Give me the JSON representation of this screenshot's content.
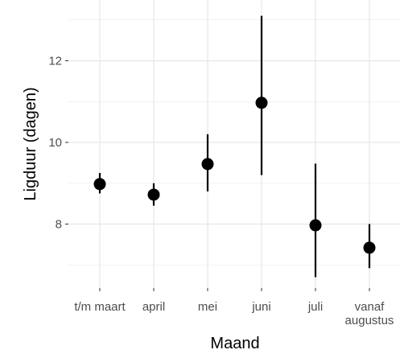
{
  "chart_data": {
    "type": "scatter",
    "xlabel": "Maand",
    "ylabel": "Ligduur (dagen)",
    "categories": [
      "t/m maart",
      "april",
      "mei",
      "juni",
      "juli",
      "vanaf augustus"
    ],
    "category_lines": [
      [
        "t/m maart"
      ],
      [
        "april"
      ],
      [
        "mei"
      ],
      [
        "juni"
      ],
      [
        "juli"
      ],
      [
        "vanaf",
        "augustus"
      ]
    ],
    "points": [
      {
        "x": "t/m maart",
        "y": 8.98,
        "ymin": 8.75,
        "ymax": 9.25
      },
      {
        "x": "april",
        "y": 8.72,
        "ymin": 8.45,
        "ymax": 9.0
      },
      {
        "x": "mei",
        "y": 9.47,
        "ymin": 8.8,
        "ymax": 10.2
      },
      {
        "x": "juni",
        "y": 10.97,
        "ymin": 9.2,
        "ymax": 13.1
      },
      {
        "x": "juli",
        "y": 7.97,
        "ymin": 6.7,
        "ymax": 9.48
      },
      {
        "x": "vanaf augustus",
        "y": 7.42,
        "ymin": 6.92,
        "ymax": 8.0
      }
    ],
    "y_ticks": [
      8,
      10,
      12
    ],
    "y_tick_labels": [
      "8",
      "10",
      "12"
    ],
    "ylim": [
      6.6,
      13.4
    ],
    "grid": true,
    "legend": "none",
    "colors": {
      "point": "#000000",
      "errorbar": "#000000",
      "grid": "#e6e6e6",
      "axis_text": "#4d4d4d",
      "background": "#ffffff"
    }
  }
}
